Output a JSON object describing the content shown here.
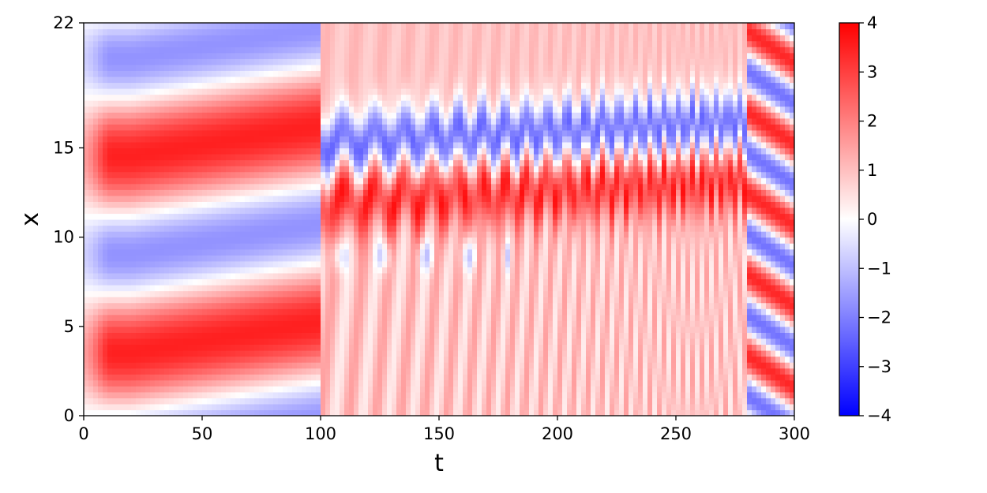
{
  "chart_data": {
    "type": "heatmap",
    "title": "",
    "xlabel": "t",
    "ylabel": "x",
    "xlim": [
      0,
      300
    ],
    "ylim": [
      0,
      22
    ],
    "xticks": [
      0,
      50,
      100,
      150,
      200,
      250,
      300
    ],
    "yticks": [
      0,
      5,
      10,
      15,
      22
    ],
    "grid": false,
    "colormap": "bwr",
    "colorbar": {
      "vmin": -4,
      "vmax": 4,
      "ticks": [
        4,
        3,
        2,
        1,
        0,
        -1,
        -2,
        -3,
        -4
      ],
      "tick_labels": [
        "4",
        "3",
        "2",
        "1",
        "0",
        "−1",
        "−2",
        "−3",
        "−4"
      ],
      "colors": {
        "low": "#0000ff",
        "mid": "#ffffff",
        "high": "#ff0000"
      }
    },
    "regions": [
      {
        "t_range": [
          0,
          100
        ],
        "pattern": "two stationary wave cells: blue troughs near x≈6–8 and x≈16–19, red crests near x≈3 and x≈13"
      },
      {
        "t_range": [
          100,
          280
        ],
        "pattern": "oscillating blue band near x≈13–18 drifting upward, red diagonal stripes below"
      },
      {
        "t_range": [
          280,
          300
        ],
        "pattern": "steep diagonal red/blue traveling waves"
      }
    ]
  }
}
